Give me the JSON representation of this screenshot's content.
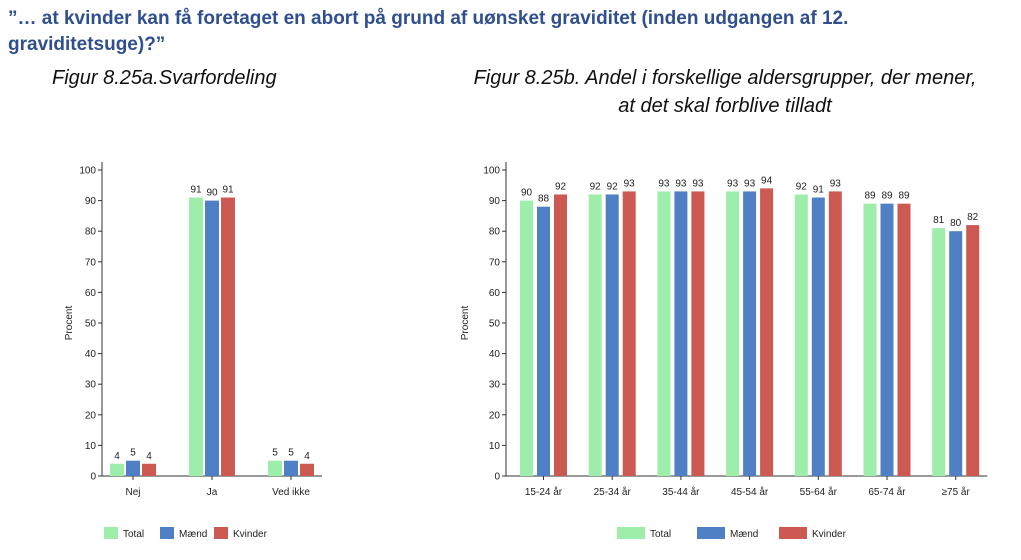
{
  "page": {
    "headline_line1": "”… at kvinder kan få foretaget en abort på grund af uønsket graviditet (inden udgangen af 12.",
    "headline_line2": "graviditetsuge)?”"
  },
  "colors": {
    "total": "#9fedaa",
    "maend": "#4f7fc4",
    "kvinder": "#cd5a52"
  },
  "chart_data": [
    {
      "type": "bar",
      "title": "Figur 8.25a.Svarfordeling",
      "categories": [
        "Nej",
        "Ja",
        "Ved ikke"
      ],
      "series": [
        {
          "name": "Total",
          "values": [
            4,
            91,
            5
          ]
        },
        {
          "name": "Mænd",
          "values": [
            5,
            90,
            5
          ]
        },
        {
          "name": "Kvinder",
          "values": [
            4,
            91,
            4
          ]
        }
      ],
      "xlabel": "",
      "ylabel": "Procent",
      "ylim": [
        0,
        100
      ],
      "yticks": [
        "0",
        "10",
        "20",
        "30",
        "40",
        "50",
        "60",
        "70",
        "80",
        "90",
        "100"
      ],
      "legend": "bottom"
    },
    {
      "type": "bar",
      "title_line1": "Figur 8.25b. Andel i forskellige aldersgrupper, der mener,",
      "title_line2": "at det skal forblive tilladt",
      "categories": [
        "15-24 år",
        "25-34 år",
        "35-44 år",
        "45-54 år",
        "55-64 år",
        "65-74 år",
        "≥75 år"
      ],
      "series": [
        {
          "name": "Total",
          "values": [
            90,
            92,
            93,
            93,
            92,
            89,
            81
          ]
        },
        {
          "name": "Mænd",
          "values": [
            88,
            92,
            93,
            93,
            91,
            89,
            80
          ]
        },
        {
          "name": "Kvinder",
          "values": [
            92,
            93,
            93,
            94,
            93,
            89,
            82
          ]
        }
      ],
      "xlabel": "",
      "ylabel": "Procent",
      "ylim": [
        0,
        100
      ],
      "yticks": [
        "0",
        "10",
        "20",
        "30",
        "40",
        "50",
        "60",
        "70",
        "80",
        "90",
        "100"
      ],
      "legend": "bottom"
    }
  ]
}
